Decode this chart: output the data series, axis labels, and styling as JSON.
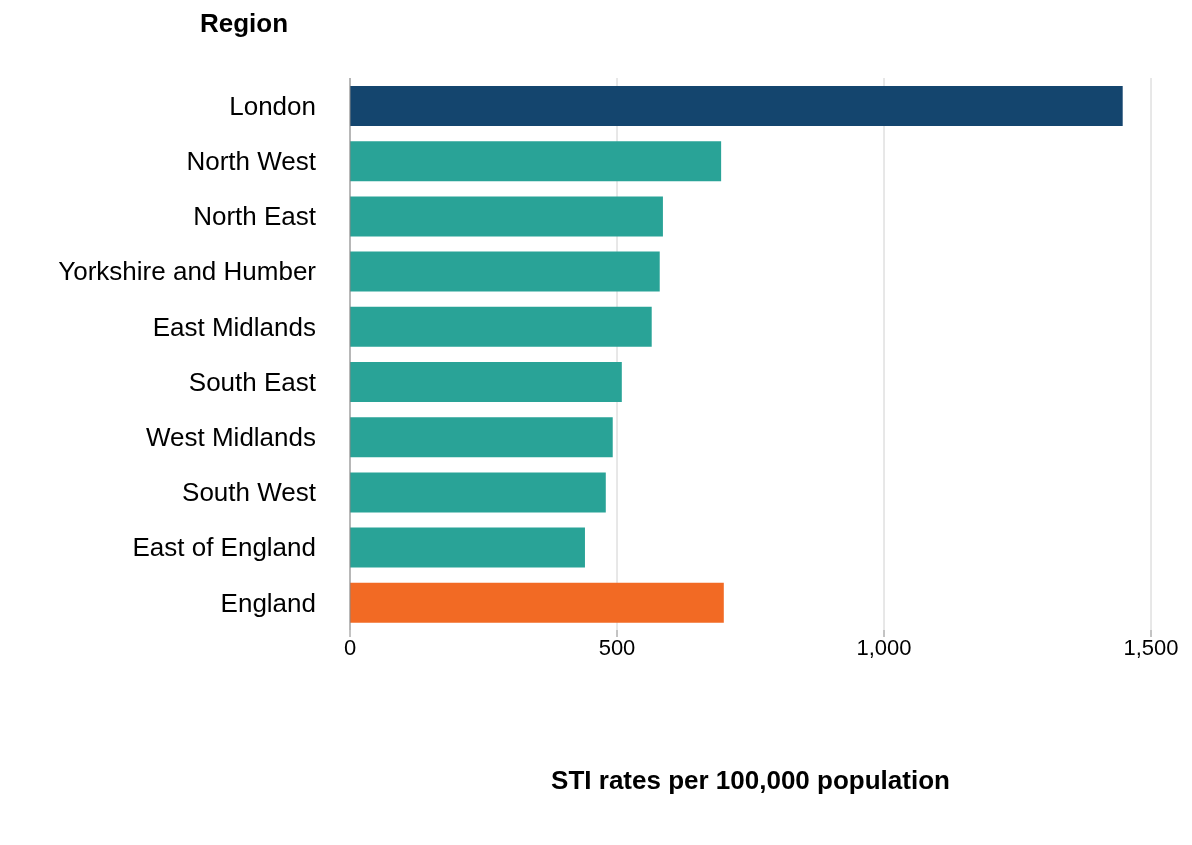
{
  "chart_data": {
    "type": "bar",
    "orientation": "horizontal",
    "ylabel": "Region",
    "xlabel": "STI rates per 100,000 population",
    "categories": [
      "London",
      "North West",
      "North East",
      "Yorkshire and Humber",
      "East Midlands",
      "South East",
      "West Midlands",
      "South West",
      "East of England",
      "England"
    ],
    "values": [
      1447,
      695,
      586,
      580,
      565,
      509,
      492,
      479,
      440,
      700
    ],
    "colors": [
      "#14456e",
      "#29a397",
      "#29a397",
      "#29a397",
      "#29a397",
      "#29a397",
      "#29a397",
      "#29a397",
      "#29a397",
      "#f26a24"
    ],
    "xlim": [
      0,
      1500
    ],
    "xticks": [
      0,
      {
        "value": 500,
        "label": "500"
      },
      {
        "value": 1000,
        "label": "1,000"
      },
      {
        "value": 1500,
        "label": "1,500"
      }
    ],
    "grid": "x"
  }
}
